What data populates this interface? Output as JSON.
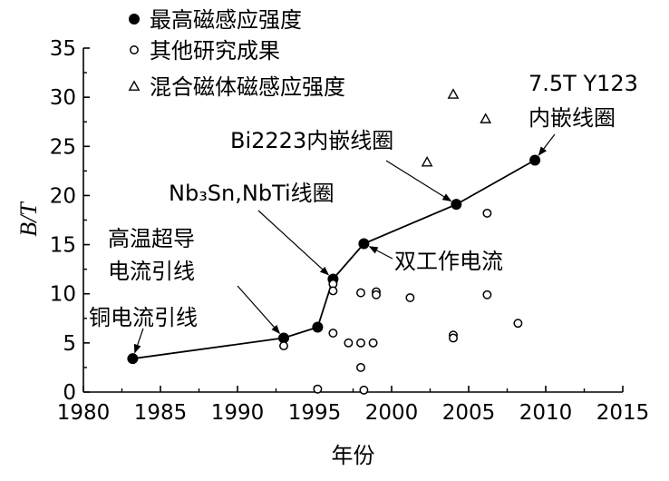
{
  "chart_data": {
    "type": "scatter",
    "xlabel": "年份",
    "ylabel": "B/T",
    "xlim": [
      1980,
      2015
    ],
    "ylim": [
      0,
      35
    ],
    "xticks": [
      "1980",
      "1985",
      "1990",
      "1995",
      "2000",
      "2005",
      "2010",
      "2015"
    ],
    "yticks": [
      "0",
      "5",
      "10",
      "15",
      "20",
      "25",
      "30",
      "35"
    ],
    "grid": false,
    "legend_position": "top-left",
    "series": [
      {
        "name": "最高磁感应强度",
        "marker": "filled-circle",
        "connected": true,
        "points": [
          {
            "x": 1983.2,
            "y": 3.4
          },
          {
            "x": 1993.0,
            "y": 5.5
          },
          {
            "x": 1995.2,
            "y": 6.6
          },
          {
            "x": 1996.2,
            "y": 11.5
          },
          {
            "x": 1998.2,
            "y": 15.1
          },
          {
            "x": 2004.2,
            "y": 19.1
          },
          {
            "x": 2009.3,
            "y": 23.6
          }
        ]
      },
      {
        "name": "其他研究成果",
        "marker": "open-circle",
        "connected": false,
        "points": [
          {
            "x": 1993.0,
            "y": 4.7
          },
          {
            "x": 1995.2,
            "y": 0.3
          },
          {
            "x": 1996.2,
            "y": 11.0
          },
          {
            "x": 1996.2,
            "y": 10.3
          },
          {
            "x": 1996.2,
            "y": 6.0
          },
          {
            "x": 1997.2,
            "y": 5.0
          },
          {
            "x": 1998.0,
            "y": 10.1
          },
          {
            "x": 1998.0,
            "y": 5.0
          },
          {
            "x": 1998.0,
            "y": 2.5
          },
          {
            "x": 1998.2,
            "y": 0.2
          },
          {
            "x": 1998.8,
            "y": 5.0
          },
          {
            "x": 1999.0,
            "y": 10.2
          },
          {
            "x": 1999.0,
            "y": 9.9
          },
          {
            "x": 2001.2,
            "y": 9.6
          },
          {
            "x": 2004.0,
            "y": 5.8
          },
          {
            "x": 2004.0,
            "y": 5.5
          },
          {
            "x": 2006.2,
            "y": 18.2
          },
          {
            "x": 2006.2,
            "y": 9.9
          },
          {
            "x": 2008.2,
            "y": 7.0
          }
        ]
      },
      {
        "name": "混合磁体磁感应强度",
        "marker": "open-triangle",
        "connected": false,
        "points": [
          {
            "x": 2002.3,
            "y": 23.4
          },
          {
            "x": 2004.0,
            "y": 30.3
          },
          {
            "x": 2006.1,
            "y": 27.8
          }
        ]
      }
    ],
    "annotations": [
      {
        "lines": [
          "铜电流引线"
        ],
        "target": {
          "x": 1983.2,
          "y": 3.4
        },
        "arrow": true
      },
      {
        "lines": [
          "高温超导",
          "电流引线"
        ],
        "target": {
          "x": 1993.0,
          "y": 5.5
        },
        "arrow": true
      },
      {
        "lines": [
          "Nb₃Sn,NbTi线圈"
        ],
        "target": {
          "x": 1996.2,
          "y": 11.5
        },
        "arrow": true
      },
      {
        "lines": [
          "双工作电流"
        ],
        "target": {
          "x": 1998.2,
          "y": 15.1
        },
        "arrow": true
      },
      {
        "lines": [
          "Bi2223内嵌线圈"
        ],
        "target": {
          "x": 2004.2,
          "y": 19.1
        },
        "arrow": true
      },
      {
        "lines": [
          "7.5T Y123",
          "内嵌线圈"
        ],
        "target": {
          "x": 2009.3,
          "y": 23.6
        },
        "arrow": true
      }
    ]
  }
}
